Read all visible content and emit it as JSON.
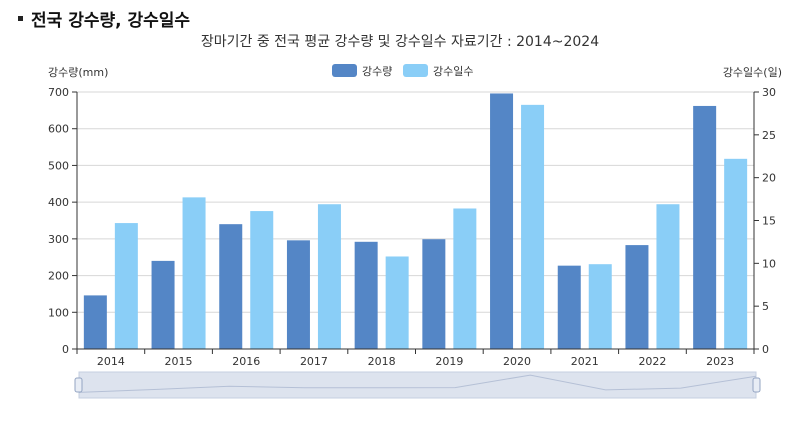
{
  "page": {
    "heading": "전국 강수량, 강수일수"
  },
  "chart_data": {
    "type": "bar",
    "title": "장마기간 중 전국 평균 강수량 및 강수일수 자료기간 : 2014~2024",
    "categories": [
      "2014",
      "2015",
      "2016",
      "2017",
      "2018",
      "2019",
      "2020",
      "2021",
      "2022",
      "2023"
    ],
    "series": [
      {
        "name": "강수량",
        "axis": "left",
        "color": "#5486c6",
        "values": [
          146,
          240,
          340,
          296,
          292,
          299,
          696,
          227,
          283,
          662
        ]
      },
      {
        "name": "강수일수",
        "axis": "right",
        "color": "#8acef7",
        "values": [
          14.7,
          17.7,
          16.1,
          16.9,
          10.8,
          16.4,
          28.5,
          9.9,
          16.9,
          22.2
        ]
      }
    ],
    "ylabel_left": "강수량(mm)",
    "ylabel_right": "강수일수(일)",
    "ylim_left": [
      0,
      700
    ],
    "ylim_right": [
      0,
      30
    ],
    "yticks_left": [
      "0",
      "100",
      "200",
      "300",
      "400",
      "500",
      "600",
      "700"
    ],
    "yticks_right": [
      "0",
      "5",
      "10",
      "15",
      "20",
      "25",
      "30"
    ],
    "grid": true,
    "legend": "top-center",
    "has_zoom_slider": true
  }
}
